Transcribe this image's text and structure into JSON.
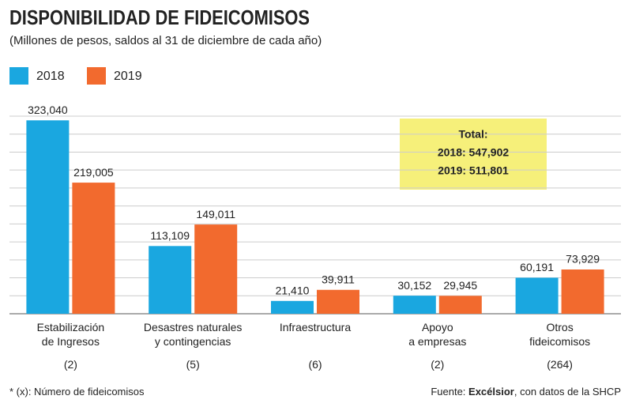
{
  "chart_data": {
    "type": "bar",
    "title": "DISPONIBILIDAD DE FIDEICOMISOS",
    "subtitle": "(Millones de pesos, saldos al 31 de diciembre de cada año)",
    "categories": [
      "Estabilización\nde Ingresos",
      "Desastres naturales\ny contingencias",
      "Infraestructura",
      "Apoyo\na empresas",
      "Otros\nfideicomisos"
    ],
    "counts": [
      "(2)",
      "(5)",
      "(6)",
      "(2)",
      "(264)"
    ],
    "series": [
      {
        "name": "2018",
        "color": "#1aa7e0",
        "values": [
          323040,
          113109,
          21410,
          30152,
          60191
        ],
        "value_labels": [
          "323,040",
          "113,109",
          "21,410",
          "30,152",
          "60,191"
        ]
      },
      {
        "name": "2019",
        "color": "#f26a2e",
        "values": [
          219005,
          149011,
          39911,
          29945,
          73929
        ],
        "value_labels": [
          "219,005",
          "149,011",
          "39,911",
          "29,945",
          "73,929"
        ]
      }
    ],
    "ylim": [
      0,
      330000
    ],
    "yticks": [
      0,
      30000,
      60000,
      90000,
      120000,
      150000,
      180000,
      210000,
      240000,
      270000,
      300000,
      330000
    ],
    "grid": true,
    "legend": "top-left",
    "annotation": [
      "Total:",
      "2018: 547,902",
      "2019: 511,801"
    ],
    "footnote": "* (x): Número de fideicomisos",
    "source": [
      "Fuente: ",
      "Excélsior",
      ", con datos de la SHCP"
    ]
  }
}
